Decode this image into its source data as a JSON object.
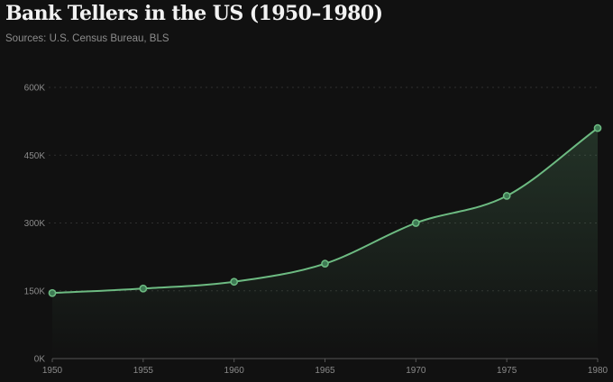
{
  "header": {
    "title": "Bank Tellers in the US (1950–1980)",
    "subtitle": "Sources: U.S. Census Bureau, BLS"
  },
  "colors": {
    "background": "#111111",
    "line": "#6dbb82",
    "point": "#3e7a54",
    "grid": "#2f2f2f",
    "axis": "#555555",
    "tick_text": "#8a8a8a"
  },
  "chart_data": {
    "type": "area",
    "title": "Bank Tellers in the US (1950–1980)",
    "subtitle": "Sources: U.S. Census Bureau, BLS",
    "xlabel": "",
    "ylabel": "",
    "x": [
      1950,
      1955,
      1960,
      1965,
      1970,
      1975,
      1980
    ],
    "series": [
      {
        "values": [
          145000,
          155000,
          170000,
          210000,
          300000,
          360000,
          510000
        ]
      }
    ],
    "xlim": [
      1950,
      1980
    ],
    "ylim": [
      0,
      600000
    ],
    "x_ticks": [
      "1950",
      "1955",
      "1960",
      "1965",
      "1970",
      "1975",
      "1980"
    ],
    "y_ticks": [
      {
        "value": 0,
        "label": "0K"
      },
      {
        "value": 150000,
        "label": "150K"
      },
      {
        "value": 300000,
        "label": "300K"
      },
      {
        "value": 450000,
        "label": "450K"
      },
      {
        "value": 600000,
        "label": "600K"
      }
    ],
    "grid": "horizontal dotted",
    "legend": "none"
  }
}
